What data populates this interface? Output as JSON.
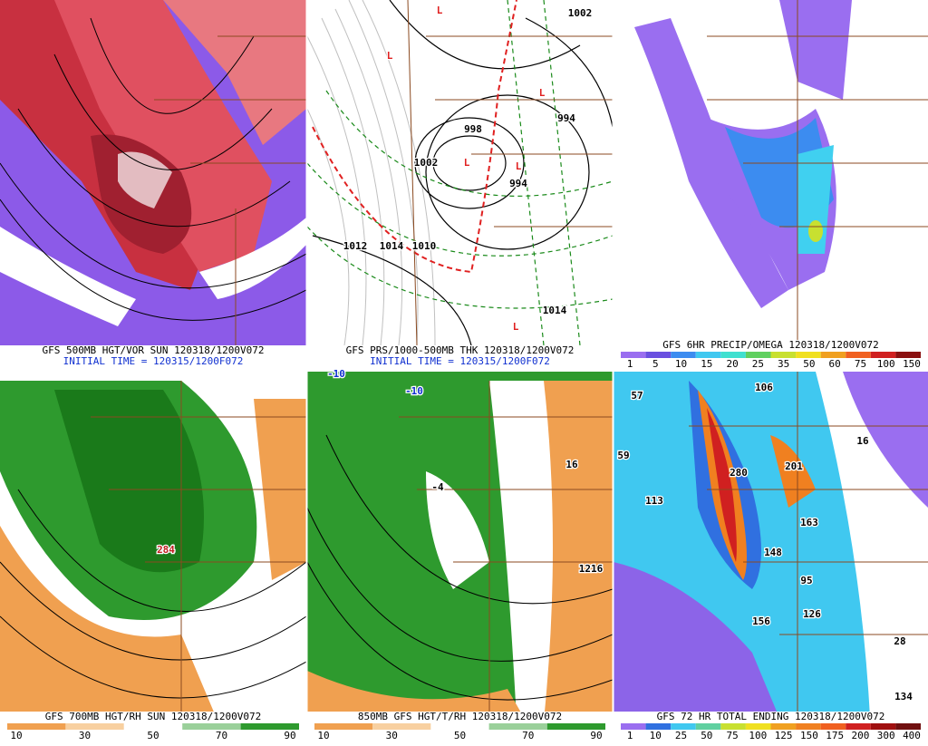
{
  "panels": [
    {
      "title": "GFS 500MB HGT/VOR SUN 120318/1200V072",
      "subtitle": "INITIAL TIME = 120315/1200F072",
      "legend": [],
      "labels": []
    },
    {
      "title": "GFS PRS/1000-500MB THK 120318/1200V072",
      "subtitle": "INITIAL TIME = 120315/1200F072",
      "legend": [],
      "labels": [
        "L",
        "L",
        "L",
        "L",
        "L",
        "L",
        "1002",
        "994",
        "998",
        "1002",
        "994",
        "1012",
        "1014",
        "1010",
        "1014"
      ]
    },
    {
      "title": "GFS 6HR PRECIP/OMEGA 120318/1200V072",
      "legend": [
        "1",
        "5",
        "10",
        "15",
        "20",
        "25",
        "35",
        "50",
        "60",
        "75",
        "100",
        "150"
      ],
      "labels": []
    },
    {
      "title": "GFS 700MB HGT/RH SUN 120318/1200V072",
      "legend": [
        "10",
        "30",
        "50",
        "70",
        "90"
      ],
      "labels": [
        "284"
      ]
    },
    {
      "title": "850MB GFS HGT/T/RH 120318/1200V072",
      "legend": [
        "10",
        "30",
        "50",
        "70",
        "90"
      ],
      "labels": [
        "-10",
        "-10",
        "-4",
        "16",
        "1216"
      ]
    },
    {
      "title": "GFS 72 HR TOTAL ENDING 120318/1200V072",
      "legend": [
        "1",
        "10",
        "25",
        "50",
        "75",
        "100",
        "125",
        "150",
        "175",
        "200",
        "300",
        "400"
      ],
      "labels": [
        "57",
        "106",
        "16",
        "59",
        "113",
        "280",
        "201",
        "163",
        "148",
        "95",
        "126",
        "156",
        "28",
        "134"
      ]
    }
  ]
}
